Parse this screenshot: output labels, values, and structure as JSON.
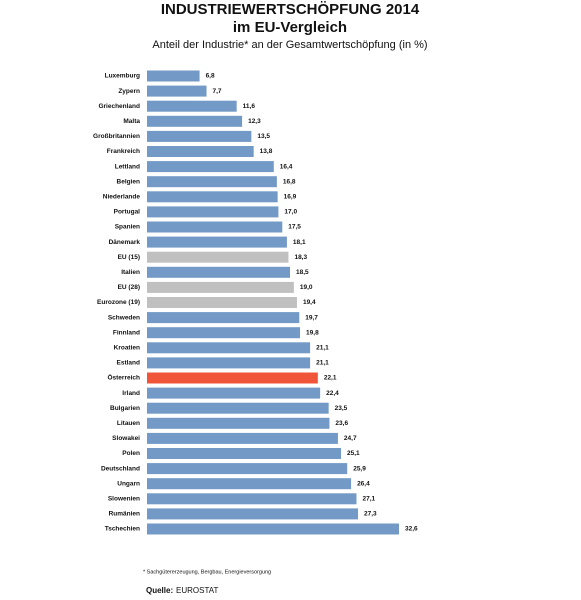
{
  "chart_data": {
    "type": "barh",
    "title": "INDUSTRIEWERTSCHÖPFUNG 2014",
    "subtitle": "im EU-Vergleich",
    "description": "Anteil der Industrie* an der Gesamtwertschöpfung (in %)",
    "footnote": "* Sachgütererzeugung, Bergbau, Energieversorgung",
    "source_label": "Quelle:",
    "source": "EUROSTAT",
    "categories": [
      "Luxemburg",
      "Zypern",
      "Griechenland",
      "Malta",
      "Großbritannien",
      "Frankreich",
      "Lettland",
      "Belgien",
      "Niederlande",
      "Portugal",
      "Spanien",
      "Dänemark",
      "EU (15)",
      "Italien",
      "EU (28)",
      "Eurozone (19)",
      "Schweden",
      "Finnland",
      "Kroatien",
      "Estland",
      "Österreich",
      "Irland",
      "Bulgarien",
      "Litauen",
      "Slowakei",
      "Polen",
      "Deutschland",
      "Ungarn",
      "Slowenien",
      "Rumänien",
      "Tschechien"
    ],
    "values": [
      6.8,
      7.7,
      11.6,
      12.3,
      13.5,
      13.8,
      16.4,
      16.8,
      16.9,
      17.0,
      17.5,
      18.1,
      18.3,
      18.5,
      19.0,
      19.4,
      19.7,
      19.8,
      21.1,
      21.1,
      22.1,
      22.4,
      23.5,
      23.6,
      24.7,
      25.1,
      25.9,
      26.4,
      27.1,
      27.3,
      32.6
    ],
    "value_labels": [
      "6,8",
      "7,7",
      "11,6",
      "12,3",
      "13,5",
      "13,8",
      "16,4",
      "16,8",
      "16,9",
      "17,0",
      "17,5",
      "18,1",
      "18,3",
      "18,5",
      "19,0",
      "19,4",
      "19,7",
      "19,8",
      "21,1",
      "21,1",
      "22,1",
      "22,4",
      "23,5",
      "23,6",
      "24,7",
      "25,1",
      "25,9",
      "26,4",
      "27,1",
      "27,3",
      "32,6"
    ],
    "colors": [
      "#7399c6",
      "#7399c6",
      "#7399c6",
      "#7399c6",
      "#7399c6",
      "#7399c6",
      "#7399c6",
      "#7399c6",
      "#7399c6",
      "#7399c6",
      "#7399c6",
      "#7399c6",
      "#c0c0c0",
      "#7399c6",
      "#c0c0c0",
      "#c0c0c0",
      "#7399c6",
      "#7399c6",
      "#7399c6",
      "#7399c6",
      "#f0553a",
      "#7399c6",
      "#7399c6",
      "#7399c6",
      "#7399c6",
      "#7399c6",
      "#7399c6",
      "#7399c6",
      "#7399c6",
      "#7399c6",
      "#7399c6"
    ]
  }
}
